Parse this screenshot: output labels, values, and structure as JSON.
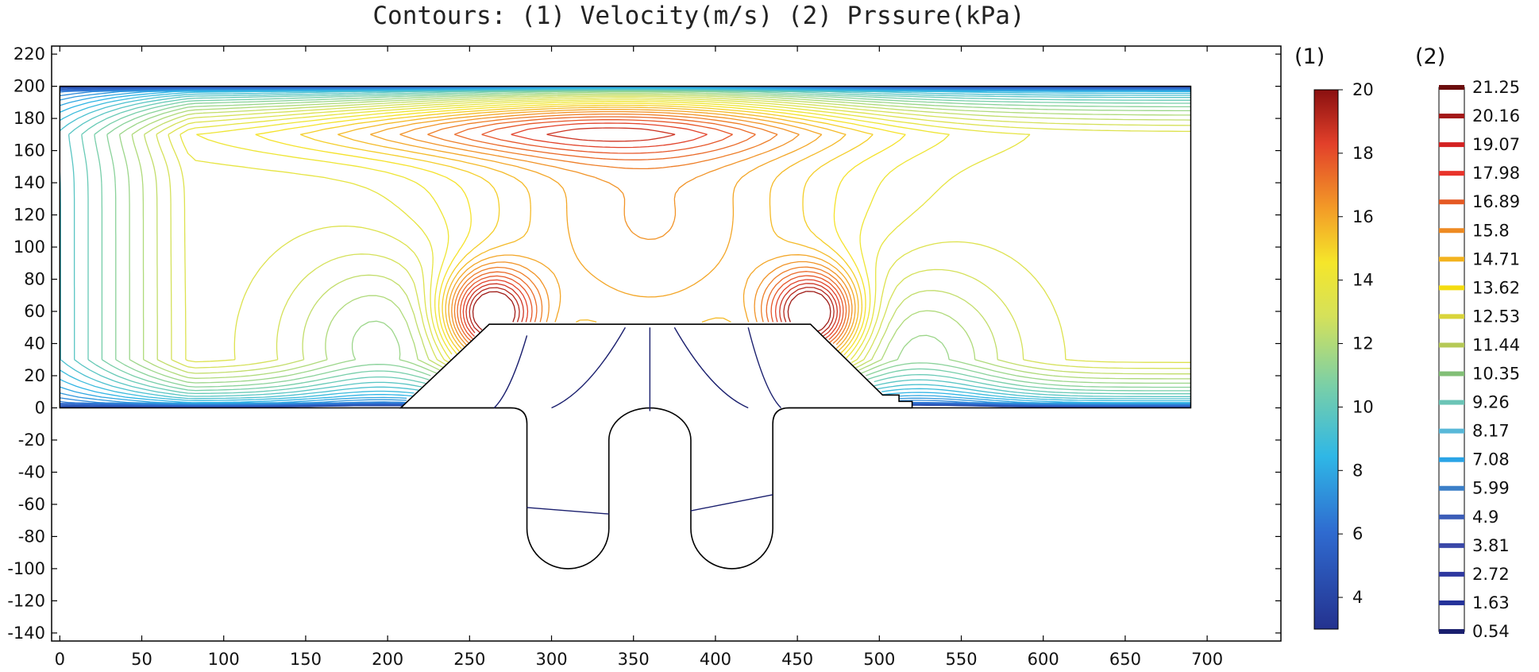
{
  "chart_data": {
    "type": "contour",
    "title": "Contours: (1) Velocity(m/s) (2) Prssure(kPa)",
    "xlabel": "",
    "ylabel": "",
    "xlim": [
      -5,
      745
    ],
    "ylim": [
      -145,
      225
    ],
    "x_ticks": [
      0,
      50,
      100,
      150,
      200,
      250,
      300,
      350,
      400,
      450,
      500,
      550,
      600,
      650,
      700
    ],
    "y_ticks": [
      220,
      200,
      180,
      160,
      140,
      120,
      100,
      80,
      60,
      40,
      20,
      0,
      -20,
      -40,
      -60,
      -80,
      -100,
      -120,
      -140
    ],
    "grid": false,
    "domain": {
      "flow_channel": {
        "x": [
          0,
          690
        ],
        "y": [
          0,
          200
        ]
      },
      "obstacle": [
        [
          208,
          0
        ],
        [
          262,
          52
        ],
        [
          458,
          52
        ],
        [
          502,
          8
        ],
        [
          512,
          8
        ],
        [
          512,
          4
        ],
        [
          520,
          4
        ],
        [
          520,
          0
        ]
      ],
      "cavities": [
        {
          "x_left": 285,
          "x_right": 335,
          "y_top": 0,
          "y_bottom": -100
        },
        {
          "x_left": 385,
          "x_right": 435,
          "y_top": 0,
          "y_bottom": -100
        }
      ]
    },
    "velocity_hotspots": [
      {
        "x": 262,
        "y": 58,
        "velocity": 20
      },
      {
        "x": 460,
        "y": 58,
        "velocity": 20
      }
    ],
    "colorbars": [
      {
        "label": "(1)",
        "quantity": "Velocity",
        "unit": "m/s",
        "range": [
          3,
          20
        ],
        "tick_labels": [
          "20",
          "18",
          "16",
          "14",
          "12",
          "10",
          "8",
          "6",
          "4"
        ],
        "tick_values": [
          20,
          18,
          16,
          14,
          12,
          10,
          8,
          6,
          4
        ]
      },
      {
        "label": "(2)",
        "quantity": "Pressure",
        "unit": "kPa",
        "levels": [
          "21.25",
          "20.16",
          "19.07",
          "17.98",
          "16.89",
          "15.8",
          "14.71",
          "13.62",
          "12.53",
          "11.44",
          "10.35",
          "9.26",
          "8.17",
          "7.08",
          "5.99",
          "4.9",
          "3.81",
          "2.72",
          "1.63",
          "0.54"
        ],
        "level_colors": [
          "#6b0d0d",
          "#a31818",
          "#d42222",
          "#e8332a",
          "#e55a24",
          "#ee8a22",
          "#f3b31e",
          "#f4dc10",
          "#d9d43a",
          "#b5c956",
          "#82bf76",
          "#6bc4b6",
          "#58b8d8",
          "#2aa4e6",
          "#3b7fc8",
          "#3b5db8",
          "#3a48a8",
          "#2e38a0",
          "#24329a",
          "#1a1f6e"
        ]
      }
    ]
  }
}
